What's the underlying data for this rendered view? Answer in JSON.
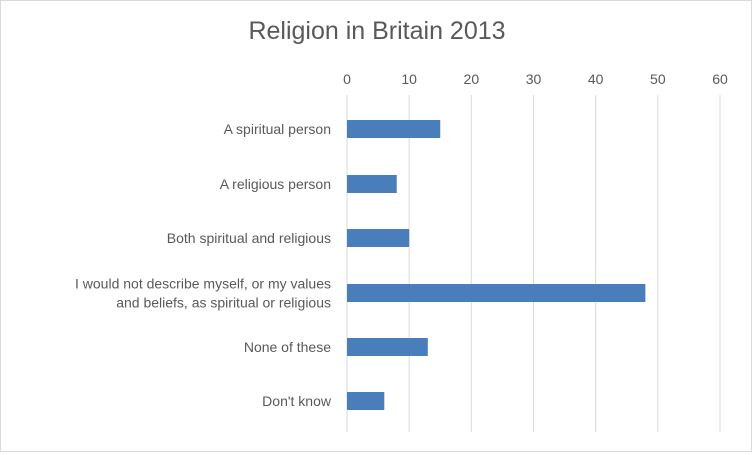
{
  "chart_data": {
    "type": "bar",
    "orientation": "horizontal",
    "title": "Religion in Britain 2013",
    "xlabel": "",
    "ylabel": "",
    "categories": [
      "A spiritual person",
      "A religious person",
      "Both spiritual and religious",
      "I would not describe myself, or my values and beliefs, as spiritual or religious",
      "None of these",
      "Don't know"
    ],
    "category_lines": [
      [
        "A spiritual person"
      ],
      [
        "A religious person"
      ],
      [
        "Both spiritual and religious"
      ],
      [
        "I would not describe myself, or my values",
        "and beliefs, as spiritual or religious"
      ],
      [
        "None of these"
      ],
      [
        "Don't know"
      ]
    ],
    "values": [
      15,
      8,
      10,
      48,
      13,
      6
    ],
    "xlim": [
      0,
      60
    ],
    "xticks": [
      "0",
      "10",
      "20",
      "30",
      "40",
      "50",
      "60"
    ],
    "axis_position": "top",
    "grid": "vertical",
    "legend": "none",
    "bar_color": "#4a7ebb",
    "grid_color": "#d9d9d9",
    "text_color": "#595959"
  }
}
